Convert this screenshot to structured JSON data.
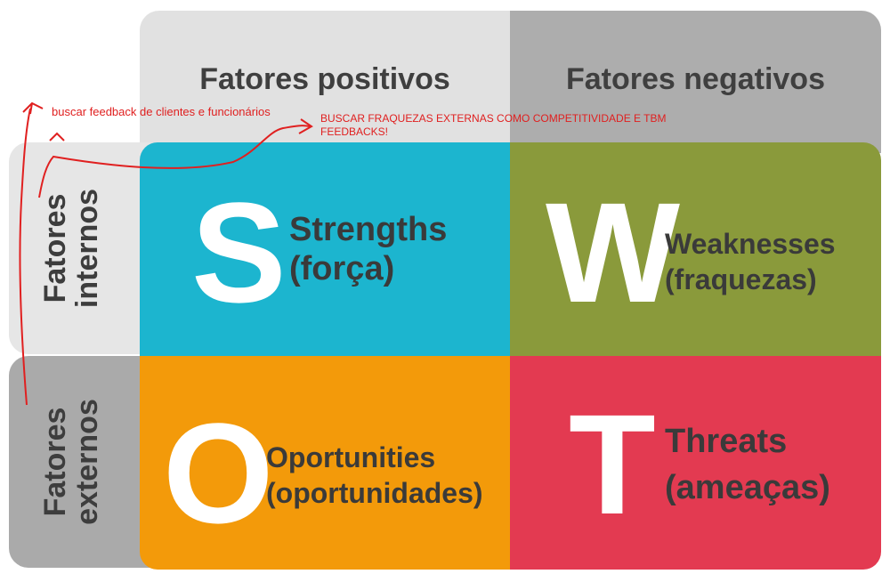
{
  "headers": {
    "positive": "Fatores positivos",
    "negative": "Fatores negativos"
  },
  "sides": {
    "internal_line1": "Fatores",
    "internal_line2": "internos",
    "external_line1": "Fatores",
    "external_line2": "externos"
  },
  "quadrants": {
    "s": {
      "letter": "S",
      "title": "Strengths",
      "subtitle": "(força)",
      "color": "#1cb5cf"
    },
    "w": {
      "letter": "W",
      "title": "Weaknesses",
      "subtitle": "(fraquezas)",
      "color": "#8a9a3b"
    },
    "o": {
      "letter": "O",
      "title": "Oportunities",
      "subtitle": "(oportunidades)",
      "color": "#f39a0a"
    },
    "t": {
      "letter": "T",
      "title": "Threats",
      "subtitle": "(ameaças)",
      "color": "#e33a51"
    }
  },
  "annotations": {
    "note1": "buscar feedback de clientes e funcionários",
    "note2_line1": "BUSCAR FRAQUEZAS EXTERNAS COMO COMPETITIVIDADE E TBM",
    "note2_line2": "FEEDBACKS!",
    "color": "#e02020"
  }
}
